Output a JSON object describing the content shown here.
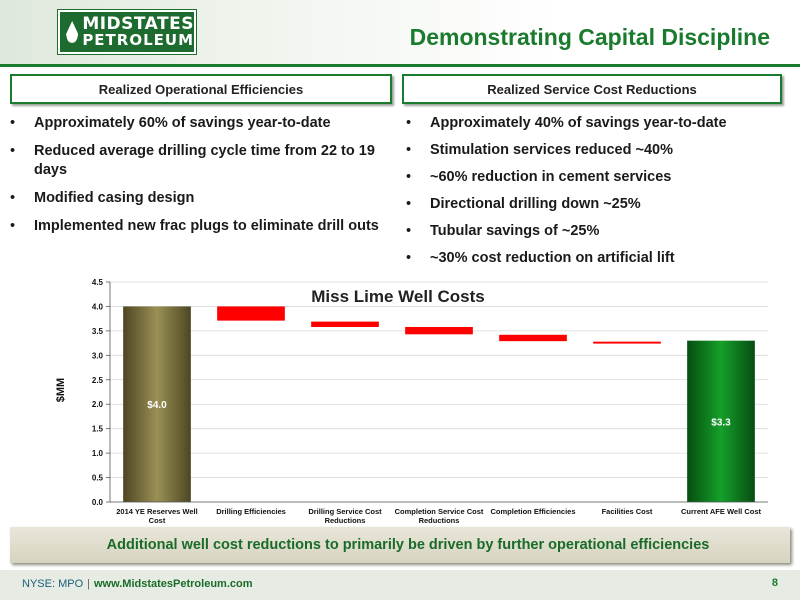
{
  "header": {
    "logo_line1": "MIDSTATES",
    "logo_line2": "PETROLEUM",
    "title": "Demonstrating Capital Discipline"
  },
  "left_section": {
    "heading": "Realized Operational Efficiencies",
    "bullets": [
      "Approximately 60% of savings year-to-date",
      "Reduced average drilling cycle time from 22 to 19 days",
      "Modified casing design",
      "Implemented new frac plugs to eliminate drill outs"
    ]
  },
  "right_section": {
    "heading": "Realized Service Cost Reductions",
    "bullets": [
      "Approximately 40% of savings year-to-date",
      "Stimulation services reduced ~40%",
      "~60% reduction in cement services",
      "Directional drilling down ~25%",
      "Tubular savings of ~25%",
      "~30% cost reduction on artificial lift"
    ]
  },
  "chart_data": {
    "type": "bar",
    "subtype": "waterfall",
    "title": "Miss Lime Well Costs",
    "ylabel": "$MM",
    "ylim": [
      0,
      4.5
    ],
    "yticks": [
      "0.0",
      "0.5",
      "1.0",
      "1.5",
      "2.0",
      "2.5",
      "3.0",
      "3.5",
      "4.0",
      "4.5"
    ],
    "categories": [
      "2014 YE Reserves Well Cost",
      "Drilling Efficiencies",
      "Drilling Service Cost Reductions",
      "Completion Service Cost Reductions",
      "Completion Efficiencies",
      "Facilities Cost",
      "Current AFE Well Cost"
    ],
    "bars": [
      {
        "kind": "total",
        "low": 0,
        "high": 4.0,
        "label": "$4.0"
      },
      {
        "kind": "decrease",
        "low": 3.71,
        "high": 4.0
      },
      {
        "kind": "decrease",
        "low": 3.58,
        "high": 3.69
      },
      {
        "kind": "decrease",
        "low": 3.43,
        "high": 3.58
      },
      {
        "kind": "decrease",
        "low": 3.29,
        "high": 3.42
      },
      {
        "kind": "decrease",
        "low": 3.24,
        "high": 3.28
      },
      {
        "kind": "total",
        "low": 0,
        "high": 3.3,
        "label": "$3.3"
      }
    ],
    "colors": {
      "start_total": "#7a7040",
      "end_total": "#0e7a1e",
      "decrease": "#ff0000"
    },
    "grid": true
  },
  "banner": {
    "text": "Additional well cost reductions to primarily be driven by further operational efficiencies"
  },
  "footer": {
    "ticker": "NYSE: MPO",
    "separator": "|",
    "url": "www.MidstatesPetroleum.com",
    "page": "8"
  }
}
